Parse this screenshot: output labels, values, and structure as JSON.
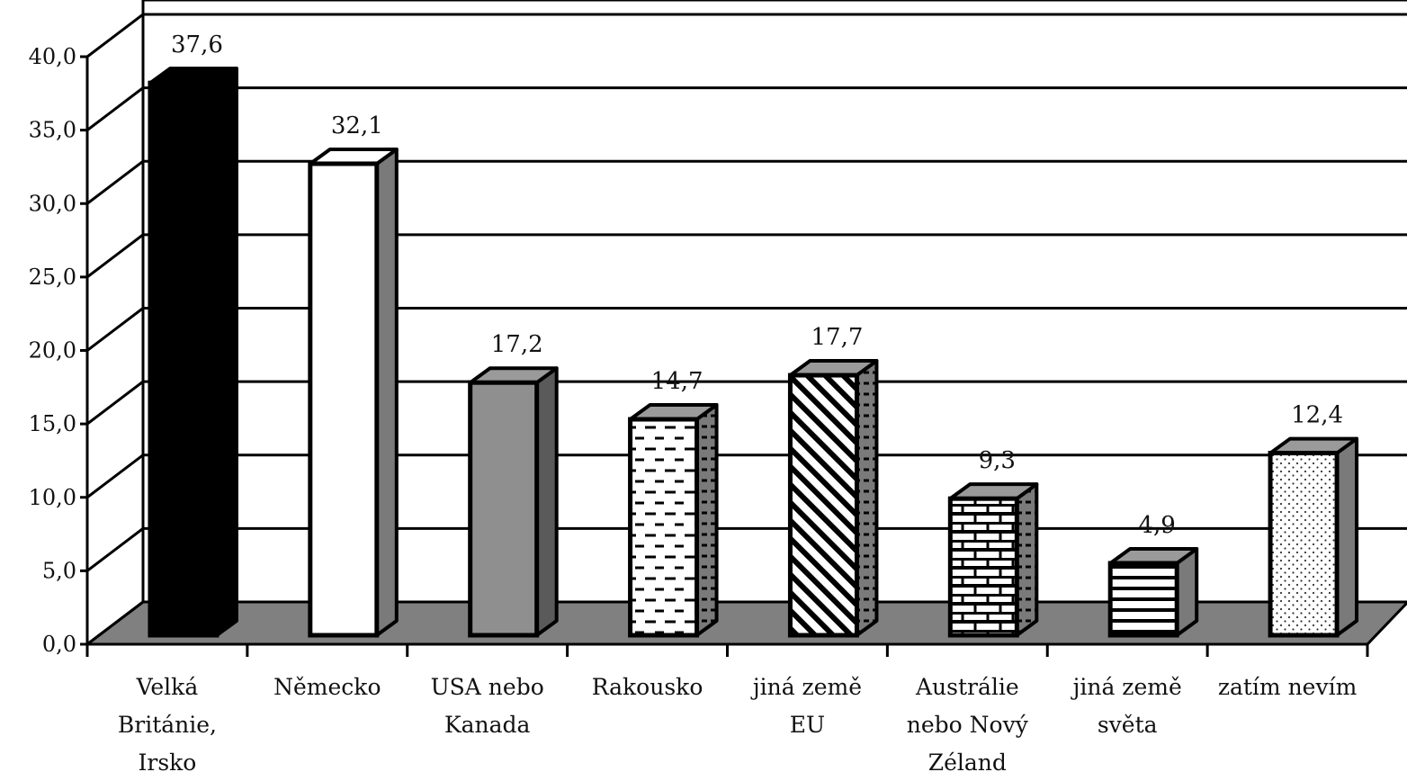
{
  "chart_data": {
    "type": "bar",
    "title": "",
    "xlabel": "",
    "ylabel": "",
    "ylim": [
      0,
      40
    ],
    "yticks": [
      "0,0",
      "5,0",
      "10,0",
      "15,0",
      "20,0",
      "25,0",
      "30,0",
      "35,0",
      "40,0"
    ],
    "grid": true,
    "three_d": true,
    "categories": [
      [
        "Velká",
        "Británie,",
        "Irsko"
      ],
      [
        "Německo"
      ],
      [
        "USA nebo",
        "Kanada"
      ],
      [
        "Rakousko"
      ],
      [
        "jiná země",
        "EU"
      ],
      [
        "Austrálie",
        "nebo Nový",
        "Zéland"
      ],
      [
        "jiná země",
        "světa"
      ],
      [
        "zatím nevím"
      ]
    ],
    "values": [
      37.6,
      32.1,
      17.2,
      14.7,
      17.7,
      9.3,
      4.9,
      12.4
    ],
    "value_labels": [
      "37,6",
      "32,1",
      "17,2",
      "14,7",
      "17,7",
      "9,3",
      "4,9",
      "12,4"
    ],
    "fills": [
      "solid-black",
      "white",
      "gray",
      "dashes",
      "diagonal-stripes",
      "brick",
      "horizontal-lines",
      "dots"
    ],
    "colors": {
      "floor": "#808080",
      "side": "#7a7a7a",
      "bar_gray": "#8f8f8f"
    }
  }
}
